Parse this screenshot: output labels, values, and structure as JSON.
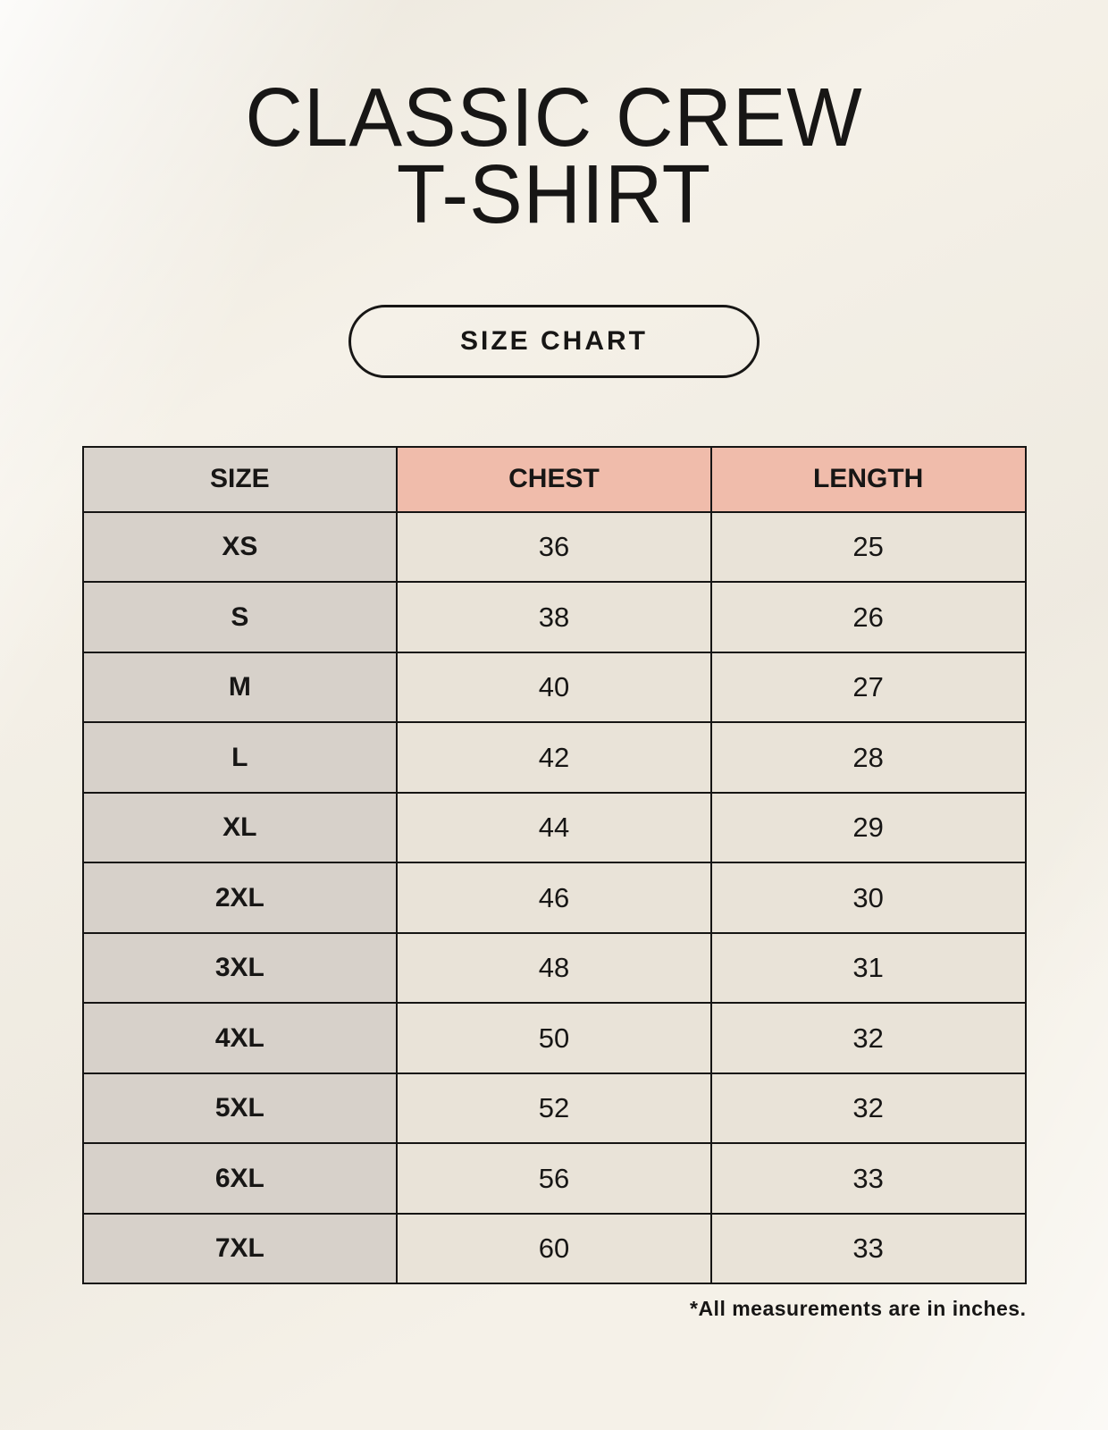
{
  "header": {
    "title_line1": "CLASSIC CREW",
    "title_line2": "T-SHIRT",
    "badge_label": "SIZE CHART"
  },
  "footer": {
    "footnote": "*All measurements are in inches."
  },
  "colors": {
    "page_background": "#f5f1e8",
    "accent_header": "#f0bcab",
    "size_column": "#d7d1ca",
    "data_cell": "#e9e3d8",
    "border": "#161514",
    "text": "#171615"
  },
  "chart_data": {
    "type": "table",
    "title": "CLASSIC CREW T-SHIRT SIZE CHART",
    "units": "inches",
    "columns": [
      "SIZE",
      "CHEST",
      "LENGTH"
    ],
    "rows": [
      [
        "XS",
        "36",
        "25"
      ],
      [
        "S",
        "38",
        "26"
      ],
      [
        "M",
        "40",
        "27"
      ],
      [
        "L",
        "42",
        "28"
      ],
      [
        "XL",
        "44",
        "29"
      ],
      [
        "2XL",
        "46",
        "30"
      ],
      [
        "3XL",
        "48",
        "31"
      ],
      [
        "4XL",
        "50",
        "32"
      ],
      [
        "5XL",
        "52",
        "32"
      ],
      [
        "6XL",
        "56",
        "33"
      ],
      [
        "7XL",
        "60",
        "33"
      ]
    ]
  }
}
